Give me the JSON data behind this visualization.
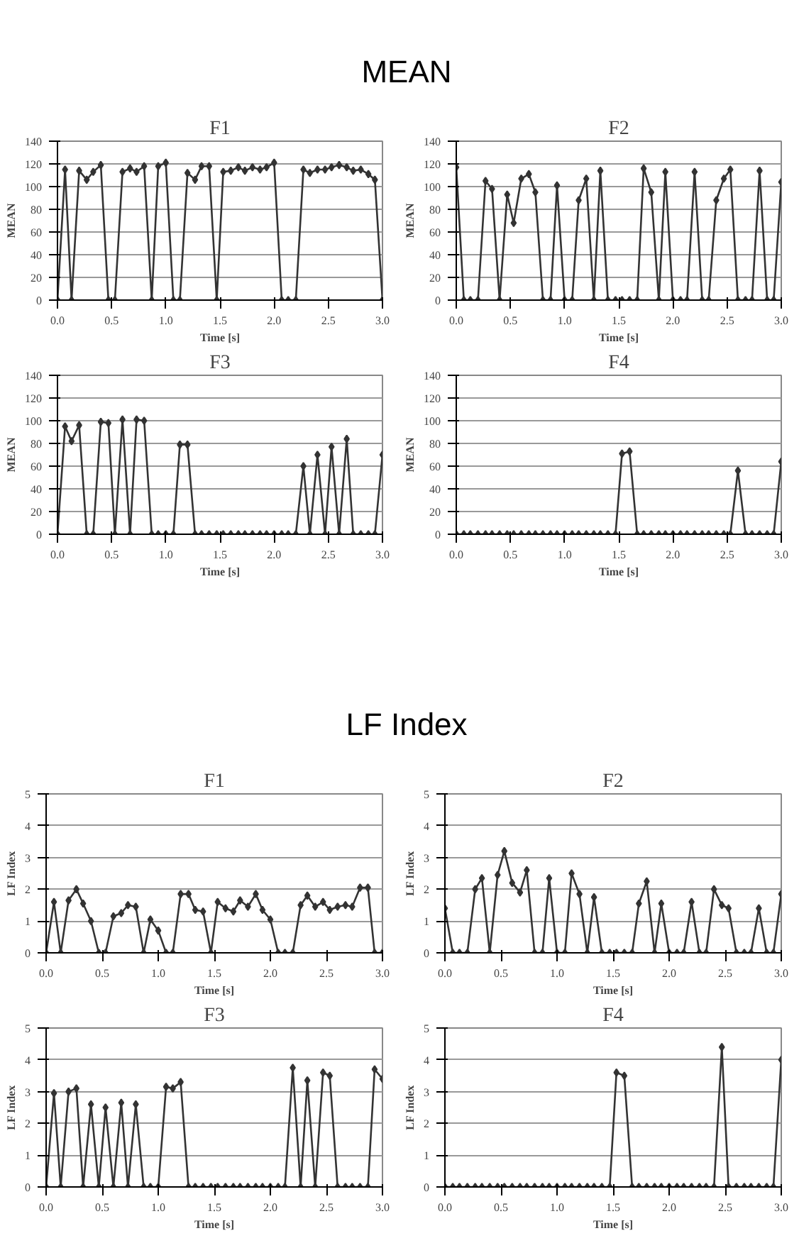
{
  "chart_data": [
    {
      "type": "line",
      "title": "F1",
      "annotations": [
        "MEAN"
      ],
      "xlabel": "Time [s]",
      "ylabel": "MEAN",
      "marker": "diamond",
      "line_style": "solid",
      "grid": "y",
      "xlim": [
        0,
        3
      ],
      "ylim": [
        0,
        140
      ],
      "xticks": [
        {
          "value": 0,
          "label": "0.0"
        },
        0.5,
        {
          "value": 1,
          "label": "1.0"
        },
        1.5,
        {
          "value": 2,
          "label": "2.0"
        },
        2.5,
        {
          "value": 3,
          "label": "3.0"
        }
      ],
      "yticks": [
        0,
        20,
        40,
        60,
        80,
        100,
        120,
        140
      ],
      "x": [
        0,
        0.07,
        0.13,
        0.2,
        0.27,
        0.33,
        0.4,
        0.47,
        0.53,
        0.6,
        0.67,
        0.73,
        0.8,
        0.87,
        0.93,
        1,
        1.07,
        1.13,
        1.2,
        1.27,
        1.33,
        1.4,
        1.47,
        1.53,
        1.6,
        1.67,
        1.73,
        1.8,
        1.87,
        1.93,
        2,
        2.07,
        2.13,
        2.2,
        2.27,
        2.33,
        2.4,
        2.47,
        2.53,
        2.6,
        2.67,
        2.73,
        2.8,
        2.87,
        2.93,
        3
      ],
      "series": [
        {
          "color": "#333333",
          "values": [
            0,
            115,
            0,
            114,
            106,
            113,
            119,
            0,
            0,
            113,
            116,
            113,
            118,
            0,
            118,
            121,
            0,
            0,
            112,
            106,
            118,
            118,
            0,
            113,
            114,
            117,
            114,
            117,
            115,
            117,
            121,
            0,
            0,
            0,
            115,
            112,
            115,
            115,
            117,
            119,
            117,
            114,
            115,
            111,
            106,
            0
          ]
        }
      ]
    },
    {
      "type": "line",
      "title": "F2",
      "xlabel": "Time [s]",
      "ylabel": "MEAN",
      "marker": "diamond",
      "line_style": "solid",
      "grid": "y",
      "xlim": [
        0,
        3
      ],
      "ylim": [
        0,
        140
      ],
      "xticks": [
        {
          "value": 0,
          "label": "0.0"
        },
        0.5,
        {
          "value": 1,
          "label": "1.0"
        },
        1.5,
        {
          "value": 2,
          "label": "2.0"
        },
        2.5,
        {
          "value": 3,
          "label": "3.0"
        }
      ],
      "yticks": [
        0,
        20,
        40,
        60,
        80,
        100,
        120,
        140
      ],
      "x": [
        0,
        0.07,
        0.13,
        0.2,
        0.27,
        0.33,
        0.4,
        0.47,
        0.53,
        0.6,
        0.67,
        0.73,
        0.8,
        0.87,
        0.93,
        1,
        1.07,
        1.13,
        1.2,
        1.27,
        1.33,
        1.4,
        1.47,
        1.53,
        1.6,
        1.67,
        1.73,
        1.8,
        1.87,
        1.93,
        2,
        2.07,
        2.13,
        2.2,
        2.27,
        2.33,
        2.4,
        2.47,
        2.53,
        2.6,
        2.67,
        2.73,
        2.8,
        2.87,
        2.93,
        3
      ],
      "series": [
        {
          "color": "#333333",
          "values": [
            117,
            0,
            0,
            0,
            105,
            98,
            0,
            93,
            68,
            107,
            111,
            95,
            0,
            0,
            101,
            0,
            0,
            88,
            107,
            0,
            114,
            0,
            0,
            0,
            0,
            0,
            116,
            95,
            0,
            113,
            0,
            0,
            0,
            113,
            0,
            0,
            88,
            107,
            115,
            0,
            0,
            0,
            114,
            0,
            0,
            104
          ]
        }
      ]
    },
    {
      "type": "line",
      "title": "F3",
      "xlabel": "Time [s]",
      "ylabel": "MEAN",
      "marker": "diamond",
      "line_style": "solid",
      "grid": "y",
      "xlim": [
        0,
        3
      ],
      "ylim": [
        0,
        140
      ],
      "xticks": [
        {
          "value": 0,
          "label": "0.0"
        },
        0.5,
        {
          "value": 1,
          "label": "1.0"
        },
        1.5,
        {
          "value": 2,
          "label": "2.0"
        },
        2.5,
        {
          "value": 3,
          "label": "3.0"
        }
      ],
      "yticks": [
        0,
        20,
        40,
        60,
        80,
        100,
        120,
        140
      ],
      "x": [
        0,
        0.07,
        0.13,
        0.2,
        0.27,
        0.33,
        0.4,
        0.47,
        0.53,
        0.6,
        0.67,
        0.73,
        0.8,
        0.87,
        0.93,
        1,
        1.07,
        1.13,
        1.2,
        1.27,
        1.33,
        1.4,
        1.47,
        1.53,
        1.6,
        1.67,
        1.73,
        1.8,
        1.87,
        1.93,
        2,
        2.07,
        2.13,
        2.2,
        2.27,
        2.33,
        2.4,
        2.47,
        2.53,
        2.6,
        2.67,
        2.73,
        2.8,
        2.87,
        2.93,
        3
      ],
      "series": [
        {
          "color": "#333333",
          "values": [
            0,
            95,
            82,
            96,
            0,
            0,
            99,
            98,
            0,
            101,
            0,
            101,
            100,
            0,
            0,
            0,
            0,
            79,
            79,
            0,
            0,
            0,
            0,
            0,
            0,
            0,
            0,
            0,
            0,
            0,
            0,
            0,
            0,
            0,
            60,
            0,
            70,
            0,
            77,
            0,
            84,
            0,
            0,
            0,
            0,
            70
          ]
        }
      ]
    },
    {
      "type": "line",
      "title": "F4",
      "xlabel": "Time [s]",
      "ylabel": "MEAN",
      "marker": "diamond",
      "line_style": "solid",
      "grid": "y",
      "xlim": [
        0,
        3
      ],
      "ylim": [
        0,
        140
      ],
      "xticks": [
        {
          "value": 0,
          "label": "0.0"
        },
        0.5,
        {
          "value": 1,
          "label": "1.0"
        },
        1.5,
        {
          "value": 2,
          "label": "2.0"
        },
        2.5,
        {
          "value": 3,
          "label": "3.0"
        }
      ],
      "yticks": [
        0,
        20,
        40,
        60,
        80,
        100,
        120,
        140
      ],
      "x": [
        0,
        0.07,
        0.13,
        0.2,
        0.27,
        0.33,
        0.4,
        0.47,
        0.53,
        0.6,
        0.67,
        0.73,
        0.8,
        0.87,
        0.93,
        1,
        1.07,
        1.13,
        1.2,
        1.27,
        1.33,
        1.4,
        1.47,
        1.53,
        1.6,
        1.67,
        1.73,
        1.8,
        1.87,
        1.93,
        2,
        2.07,
        2.13,
        2.2,
        2.27,
        2.33,
        2.4,
        2.47,
        2.53,
        2.6,
        2.67,
        2.73,
        2.8,
        2.87,
        2.93,
        3
      ],
      "series": [
        {
          "color": "#333333",
          "values": [
            0,
            0,
            0,
            0,
            0,
            0,
            0,
            0,
            0,
            0,
            0,
            0,
            0,
            0,
            0,
            0,
            0,
            0,
            0,
            0,
            0,
            0,
            0,
            71,
            73,
            0,
            0,
            0,
            0,
            0,
            0,
            0,
            0,
            0,
            0,
            0,
            0,
            0,
            0,
            56,
            0,
            0,
            0,
            0,
            0,
            64
          ]
        }
      ]
    },
    {
      "type": "line",
      "title": "F1",
      "annotations": [
        "LF Index"
      ],
      "xlabel": "Time [s]",
      "ylabel": "LF Index",
      "marker": "diamond",
      "line_style": "solid",
      "grid": "y",
      "xlim": [
        0,
        3
      ],
      "ylim": [
        0,
        5
      ],
      "xticks": [
        {
          "value": 0,
          "label": "0.0"
        },
        0.5,
        {
          "value": 1,
          "label": "1.0"
        },
        1.5,
        {
          "value": 2,
          "label": "2.0"
        },
        2.5,
        {
          "value": 3,
          "label": "3.0"
        }
      ],
      "yticks": [
        0,
        1,
        2,
        3,
        4,
        5
      ],
      "x": [
        0,
        0.07,
        0.13,
        0.2,
        0.27,
        0.33,
        0.4,
        0.47,
        0.53,
        0.6,
        0.67,
        0.73,
        0.8,
        0.87,
        0.93,
        1,
        1.07,
        1.13,
        1.2,
        1.27,
        1.33,
        1.4,
        1.47,
        1.53,
        1.6,
        1.67,
        1.73,
        1.8,
        1.87,
        1.93,
        2,
        2.07,
        2.13,
        2.2,
        2.27,
        2.33,
        2.4,
        2.47,
        2.53,
        2.6,
        2.67,
        2.73,
        2.8,
        2.87,
        2.93,
        3
      ],
      "series": [
        {
          "color": "#333333",
          "values": [
            0,
            1.6,
            0,
            1.65,
            2.0,
            1.55,
            1.0,
            0,
            0,
            1.15,
            1.25,
            1.5,
            1.45,
            0,
            1.05,
            0.7,
            0,
            0,
            1.85,
            1.85,
            1.35,
            1.3,
            0,
            1.6,
            1.4,
            1.3,
            1.65,
            1.45,
            1.85,
            1.35,
            1.05,
            0,
            0,
            0,
            1.5,
            1.8,
            1.45,
            1.6,
            1.35,
            1.45,
            1.5,
            1.45,
            2.05,
            2.05,
            0,
            0
          ]
        }
      ]
    },
    {
      "type": "line",
      "title": "F2",
      "xlabel": "Time [s]",
      "ylabel": "LF Index",
      "marker": "diamond",
      "line_style": "solid",
      "grid": "y",
      "xlim": [
        0,
        3
      ],
      "ylim": [
        0,
        5
      ],
      "xticks": [
        {
          "value": 0,
          "label": "0.0"
        },
        0.5,
        {
          "value": 1,
          "label": "1.0"
        },
        1.5,
        {
          "value": 2,
          "label": "2.0"
        },
        2.5,
        {
          "value": 3,
          "label": "3.0"
        }
      ],
      "yticks": [
        0,
        1,
        2,
        3,
        4,
        5
      ],
      "x": [
        0,
        0.07,
        0.13,
        0.2,
        0.27,
        0.33,
        0.4,
        0.47,
        0.53,
        0.6,
        0.67,
        0.73,
        0.8,
        0.87,
        0.93,
        1,
        1.07,
        1.13,
        1.2,
        1.27,
        1.33,
        1.4,
        1.47,
        1.53,
        1.6,
        1.67,
        1.73,
        1.8,
        1.87,
        1.93,
        2,
        2.07,
        2.13,
        2.2,
        2.27,
        2.33,
        2.4,
        2.47,
        2.53,
        2.6,
        2.67,
        2.73,
        2.8,
        2.87,
        2.93,
        3
      ],
      "series": [
        {
          "color": "#333333",
          "values": [
            1.4,
            0,
            0,
            0,
            2.0,
            2.35,
            0,
            2.45,
            3.2,
            2.2,
            1.9,
            2.6,
            0,
            0,
            2.35,
            0,
            0,
            2.5,
            1.85,
            0,
            1.75,
            0,
            0,
            0,
            0,
            0,
            1.55,
            2.25,
            0,
            1.55,
            0,
            0,
            0,
            1.6,
            0,
            0,
            2.0,
            1.5,
            1.4,
            0,
            0,
            0,
            1.4,
            0,
            0,
            1.85
          ]
        }
      ]
    },
    {
      "type": "line",
      "title": "F3",
      "xlabel": "Time [s]",
      "ylabel": "LF Index",
      "marker": "diamond",
      "line_style": "solid",
      "grid": "y",
      "xlim": [
        0,
        3
      ],
      "ylim": [
        0,
        5
      ],
      "xticks": [
        {
          "value": 0,
          "label": "0.0"
        },
        0.5,
        {
          "value": 1,
          "label": "1.0"
        },
        1.5,
        {
          "value": 2,
          "label": "2.0"
        },
        2.5,
        {
          "value": 3,
          "label": "3.0"
        }
      ],
      "yticks": [
        0,
        1,
        2,
        3,
        4,
        5
      ],
      "x": [
        0,
        0.07,
        0.13,
        0.2,
        0.27,
        0.33,
        0.4,
        0.47,
        0.53,
        0.6,
        0.67,
        0.73,
        0.8,
        0.87,
        0.93,
        1,
        1.07,
        1.13,
        1.2,
        1.27,
        1.33,
        1.4,
        1.47,
        1.53,
        1.6,
        1.67,
        1.73,
        1.8,
        1.87,
        1.93,
        2,
        2.07,
        2.13,
        2.2,
        2.27,
        2.33,
        2.4,
        2.47,
        2.53,
        2.6,
        2.67,
        2.73,
        2.8,
        2.87,
        2.93,
        3
      ],
      "series": [
        {
          "color": "#333333",
          "values": [
            0,
            2.95,
            0,
            3.0,
            3.1,
            0,
            2.6,
            0,
            2.5,
            0,
            2.65,
            0,
            2.6,
            0,
            0,
            0,
            3.15,
            3.1,
            3.3,
            0,
            0,
            0,
            0,
            0,
            0,
            0,
            0,
            0,
            0,
            0,
            0,
            0,
            0,
            3.75,
            0,
            3.35,
            0,
            3.6,
            3.5,
            0,
            0,
            0,
            0,
            0,
            3.7,
            3.4
          ]
        }
      ]
    },
    {
      "type": "line",
      "title": "F4",
      "xlabel": "Time [s]",
      "ylabel": "LF Index",
      "marker": "diamond",
      "line_style": "solid",
      "grid": "y",
      "xlim": [
        0,
        3
      ],
      "ylim": [
        0,
        5
      ],
      "xticks": [
        {
          "value": 0,
          "label": "0.0"
        },
        0.5,
        {
          "value": 1,
          "label": "1.0"
        },
        1.5,
        {
          "value": 2,
          "label": "2.0"
        },
        2.5,
        {
          "value": 3,
          "label": "3.0"
        }
      ],
      "yticks": [
        0,
        1,
        2,
        3,
        4,
        5
      ],
      "x": [
        0,
        0.07,
        0.13,
        0.2,
        0.27,
        0.33,
        0.4,
        0.47,
        0.53,
        0.6,
        0.67,
        0.73,
        0.8,
        0.87,
        0.93,
        1,
        1.07,
        1.13,
        1.2,
        1.27,
        1.33,
        1.4,
        1.47,
        1.53,
        1.6,
        1.67,
        1.73,
        1.8,
        1.87,
        1.93,
        2,
        2.07,
        2.13,
        2.2,
        2.27,
        2.33,
        2.4,
        2.47,
        2.53,
        2.6,
        2.67,
        2.73,
        2.8,
        2.87,
        2.93,
        3
      ],
      "series": [
        {
          "color": "#333333",
          "values": [
            0,
            0,
            0,
            0,
            0,
            0,
            0,
            0,
            0,
            0,
            0,
            0,
            0,
            0,
            0,
            0,
            0,
            0,
            0,
            0,
            0,
            0,
            0,
            3.6,
            3.5,
            0,
            0,
            0,
            0,
            0,
            0,
            0,
            0,
            0,
            0,
            0,
            0,
            4.4,
            0,
            0,
            0,
            0,
            0,
            0,
            0,
            4.0
          ]
        }
      ]
    }
  ]
}
